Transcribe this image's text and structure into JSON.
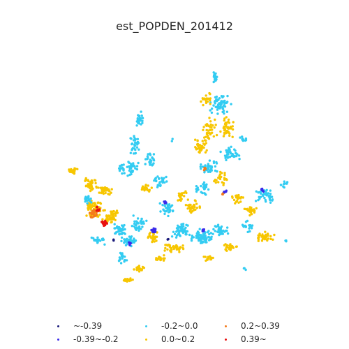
{
  "title": "est_POPDEN_201412",
  "legend": [
    {
      "label": "~-0.39",
      "color": "#1a1a7a"
    },
    {
      "label": "-0.39~-0.2",
      "color": "#3a2bea"
    },
    {
      "label": "-0.2~0.0",
      "color": "#33ccf2"
    },
    {
      "label": "0.0~0.2",
      "color": "#f7c600"
    },
    {
      "label": "0.2~0.39",
      "color": "#f47a1a"
    },
    {
      "label": "0.39~",
      "color": "#e81010"
    }
  ]
}
